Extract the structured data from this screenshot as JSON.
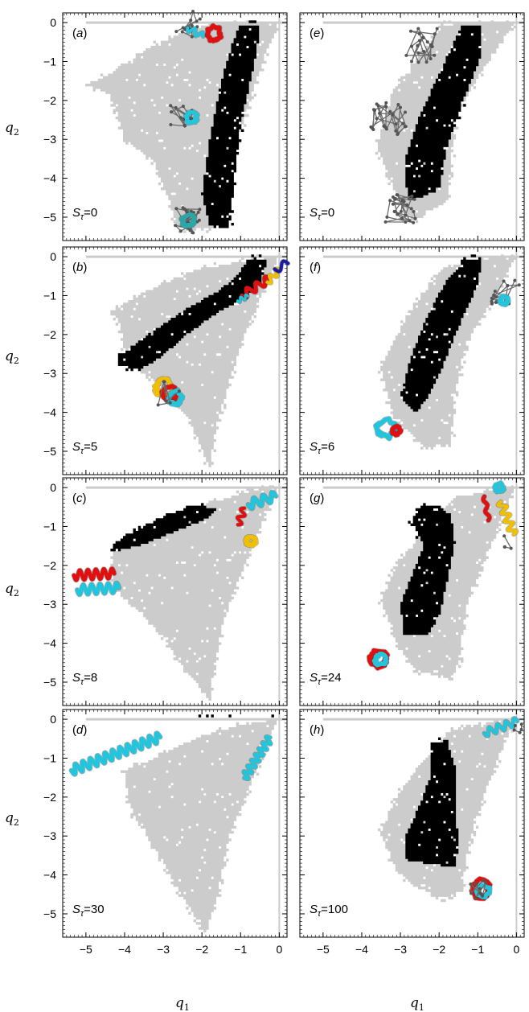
{
  "chart_data": {
    "type": "heatmap",
    "xlabel": "q1",
    "ylabel": "q2",
    "xlim": [
      -5.6,
      0.2
    ],
    "ylim": [
      -5.6,
      0.25
    ],
    "xticks": [
      -5,
      -4,
      -3,
      -2,
      -1,
      0
    ],
    "yticks": [
      0,
      -1,
      -2,
      -3,
      -4,
      -5
    ],
    "grid": false,
    "background_color": "#cccccc",
    "highlight_color": "#000000",
    "panels": [
      {
        "id": "a",
        "label": "(a)",
        "s_label": "S",
        "s_sub": "τ",
        "s_value": "=0",
        "background_region": [
          [
            -5.0,
            -1.6
          ],
          [
            -4.3,
            -1.3
          ],
          [
            -3.3,
            -0.6
          ],
          [
            -1.9,
            -0.05
          ],
          [
            -0.05,
            0
          ],
          [
            -0.6,
            -1.5
          ],
          [
            -1.8,
            -5.3
          ],
          [
            -2.6,
            -5.3
          ],
          [
            -3.2,
            -3.6
          ],
          [
            -4.0,
            -3.0
          ],
          [
            -4.2,
            -2.3
          ],
          [
            -4.4,
            -1.8
          ]
        ],
        "highlight_region": [
          [
            -1.0,
            -0.05
          ],
          [
            -0.5,
            -0.05
          ],
          [
            -0.6,
            -0.8
          ],
          [
            -1.0,
            -2.6
          ],
          [
            -1.2,
            -4.2
          ],
          [
            -1.3,
            -5.3
          ],
          [
            -1.8,
            -5.2
          ],
          [
            -2.0,
            -4.4
          ],
          [
            -1.8,
            -3.0
          ],
          [
            -1.5,
            -1.5
          ],
          [
            -1.2,
            -0.5
          ]
        ]
      },
      {
        "id": "e",
        "label": "(e)",
        "s_label": "S",
        "s_sub": "τ",
        "s_value": "=0",
        "background_region": [
          [
            -3.6,
            -3.2
          ],
          [
            -3.2,
            -1.8
          ],
          [
            -2.6,
            -1.0
          ],
          [
            -1.9,
            -0.05
          ],
          [
            -0.05,
            0
          ],
          [
            -0.9,
            -1.2
          ],
          [
            -1.6,
            -2.5
          ],
          [
            -1.8,
            -4.6
          ],
          [
            -2.7,
            -5.1
          ],
          [
            -3.2,
            -4.2
          ]
        ],
        "highlight_region": [
          [
            -1.4,
            -0.05
          ],
          [
            -0.9,
            -0.05
          ],
          [
            -0.9,
            -0.8
          ],
          [
            -1.3,
            -1.8
          ],
          [
            -1.8,
            -3.2
          ],
          [
            -2.0,
            -4.3
          ],
          [
            -2.8,
            -4.6
          ],
          [
            -2.9,
            -3.6
          ],
          [
            -2.5,
            -2.4
          ],
          [
            -1.9,
            -1.1
          ]
        ]
      },
      {
        "id": "b",
        "label": "(b)",
        "s_label": "S",
        "s_sub": "τ",
        "s_value": "=5",
        "background_region": [
          [
            -4.3,
            -1.4
          ],
          [
            -3.8,
            -1.1
          ],
          [
            -3.0,
            -0.7
          ],
          [
            -2.0,
            -0.3
          ],
          [
            -0.5,
            -0.05
          ],
          [
            -0.05,
            0
          ],
          [
            -0.3,
            -0.6
          ],
          [
            -0.9,
            -2.0
          ],
          [
            -1.3,
            -3.2
          ],
          [
            -1.7,
            -4.6
          ],
          [
            -1.8,
            -5.4
          ],
          [
            -2.3,
            -4.2
          ],
          [
            -2.7,
            -3.8
          ],
          [
            -3.2,
            -3.2
          ],
          [
            -3.6,
            -2.9
          ],
          [
            -4.0,
            -2.4
          ],
          [
            -4.1,
            -1.8
          ]
        ],
        "highlight_region": [
          [
            -4.2,
            -2.6
          ],
          [
            -3.4,
            -2.0
          ],
          [
            -2.5,
            -1.4
          ],
          [
            -1.6,
            -0.9
          ],
          [
            -1.1,
            -0.5
          ],
          [
            -0.8,
            -0.05
          ],
          [
            -0.3,
            -0.05
          ],
          [
            -0.5,
            -0.7
          ],
          [
            -1.0,
            -1.1
          ],
          [
            -1.7,
            -1.5
          ],
          [
            -2.4,
            -2.0
          ],
          [
            -3.1,
            -2.6
          ],
          [
            -3.6,
            -2.9
          ],
          [
            -4.1,
            -2.8
          ]
        ]
      },
      {
        "id": "f",
        "label": "(f)",
        "s_label": "S",
        "s_sub": "τ",
        "s_value": "=6",
        "background_region": [
          [
            -3.5,
            -2.9
          ],
          [
            -3.1,
            -2.0
          ],
          [
            -2.6,
            -1.2
          ],
          [
            -1.9,
            -0.3
          ],
          [
            -0.8,
            -0.05
          ],
          [
            -0.05,
            0
          ],
          [
            -0.6,
            -1.1
          ],
          [
            -1.3,
            -2.2
          ],
          [
            -1.6,
            -3.5
          ],
          [
            -1.7,
            -4.8
          ],
          [
            -2.4,
            -4.9
          ],
          [
            -3.2,
            -4.0
          ]
        ],
        "highlight_region": [
          [
            -3.0,
            -3.6
          ],
          [
            -2.7,
            -2.5
          ],
          [
            -2.3,
            -1.5
          ],
          [
            -1.8,
            -0.6
          ],
          [
            -1.3,
            -0.05
          ],
          [
            -0.9,
            -0.05
          ],
          [
            -1.0,
            -0.7
          ],
          [
            -1.5,
            -1.8
          ],
          [
            -1.9,
            -2.8
          ],
          [
            -2.3,
            -3.6
          ],
          [
            -2.6,
            -4.0
          ]
        ]
      },
      {
        "id": "c",
        "label": "(c)",
        "s_label": "S",
        "s_sub": "τ",
        "s_value": "=8",
        "background_region": [
          [
            -4.3,
            -1.6
          ],
          [
            -3.6,
            -1.3
          ],
          [
            -2.6,
            -0.8
          ],
          [
            -1.8,
            -0.4
          ],
          [
            -0.6,
            -0.05
          ],
          [
            -0.05,
            0
          ],
          [
            -0.4,
            -0.8
          ],
          [
            -0.9,
            -2.0
          ],
          [
            -1.4,
            -3.2
          ],
          [
            -1.7,
            -4.6
          ],
          [
            -1.8,
            -5.4
          ],
          [
            -2.5,
            -4.6
          ],
          [
            -3.0,
            -3.8
          ],
          [
            -3.8,
            -3.0
          ],
          [
            -4.3,
            -2.5
          ]
        ],
        "highlight_region": [
          [
            -4.3,
            -1.65
          ],
          [
            -3.5,
            -1.45
          ],
          [
            -2.5,
            -1.05
          ],
          [
            -1.8,
            -0.75
          ],
          [
            -1.6,
            -0.55
          ],
          [
            -2.2,
            -0.45
          ],
          [
            -3.0,
            -0.75
          ],
          [
            -3.8,
            -1.15
          ],
          [
            -4.3,
            -1.45
          ]
        ]
      },
      {
        "id": "g",
        "label": "(g)",
        "s_label": "S",
        "s_sub": "τ",
        "s_value": "=24",
        "background_region": [
          [
            -3.5,
            -2.9
          ],
          [
            -3.1,
            -2.0
          ],
          [
            -2.4,
            -1.1
          ],
          [
            -1.6,
            -0.3
          ],
          [
            -0.6,
            -0.05
          ],
          [
            -0.05,
            0
          ],
          [
            -0.4,
            -0.8
          ],
          [
            -0.9,
            -2.0
          ],
          [
            -1.3,
            -3.0
          ],
          [
            -1.5,
            -4.5
          ],
          [
            -1.7,
            -4.9
          ],
          [
            -2.6,
            -4.7
          ],
          [
            -3.1,
            -4.0
          ]
        ],
        "highlight_region": [
          [
            -2.7,
            -0.9
          ],
          [
            -2.5,
            -0.5
          ],
          [
            -2.1,
            -0.45
          ],
          [
            -1.7,
            -0.7
          ],
          [
            -1.6,
            -1.4
          ],
          [
            -1.8,
            -2.4
          ],
          [
            -2.0,
            -3.3
          ],
          [
            -2.3,
            -3.8
          ],
          [
            -2.9,
            -3.8
          ],
          [
            -3.0,
            -3.0
          ],
          [
            -2.6,
            -2.0
          ],
          [
            -2.4,
            -1.5
          ]
        ]
      },
      {
        "id": "d",
        "label": "(d)",
        "s_label": "S",
        "s_sub": "τ",
        "s_value": "=30",
        "background_region": [
          [
            -4.0,
            -1.3
          ],
          [
            -3.2,
            -1.0
          ],
          [
            -2.4,
            -0.6
          ],
          [
            -1.6,
            -0.3
          ],
          [
            -0.4,
            -0.05
          ],
          [
            -0.05,
            0
          ],
          [
            -0.4,
            -0.8
          ],
          [
            -0.8,
            -1.8
          ],
          [
            -1.3,
            -3.0
          ],
          [
            -1.6,
            -4.5
          ],
          [
            -1.9,
            -5.5
          ],
          [
            -2.6,
            -4.4
          ],
          [
            -3.2,
            -3.3
          ],
          [
            -3.7,
            -2.6
          ],
          [
            -3.9,
            -2.0
          ]
        ],
        "highlight_region": [
          [
            -2.1,
            -0.02
          ],
          [
            -0.15,
            -0.02
          ],
          [
            -0.15,
            0.02
          ],
          [
            -2.1,
            0.02
          ]
        ]
      },
      {
        "id": "h",
        "label": "(h)",
        "s_label": "S",
        "s_sub": "τ",
        "s_value": "=100",
        "background_region": [
          [
            -3.5,
            -2.9
          ],
          [
            -3.1,
            -2.0
          ],
          [
            -2.5,
            -1.2
          ],
          [
            -1.7,
            -0.3
          ],
          [
            -0.5,
            -0.05
          ],
          [
            -0.05,
            0
          ],
          [
            -0.4,
            -0.8
          ],
          [
            -0.9,
            -2.1
          ],
          [
            -1.3,
            -3.4
          ],
          [
            -1.4,
            -4.4
          ],
          [
            -1.9,
            -4.6
          ],
          [
            -2.6,
            -4.3
          ],
          [
            -3.1,
            -3.9
          ]
        ],
        "highlight_region": [
          [
            -2.2,
            -0.6
          ],
          [
            -1.8,
            -0.55
          ],
          [
            -1.6,
            -1.2
          ],
          [
            -1.6,
            -2.2
          ],
          [
            -1.5,
            -3.2
          ],
          [
            -1.6,
            -3.8
          ],
          [
            -2.3,
            -3.7
          ],
          [
            -2.9,
            -3.6
          ],
          [
            -2.9,
            -3.1
          ],
          [
            -2.5,
            -2.2
          ],
          [
            -2.2,
            -1.4
          ]
        ]
      }
    ]
  }
}
